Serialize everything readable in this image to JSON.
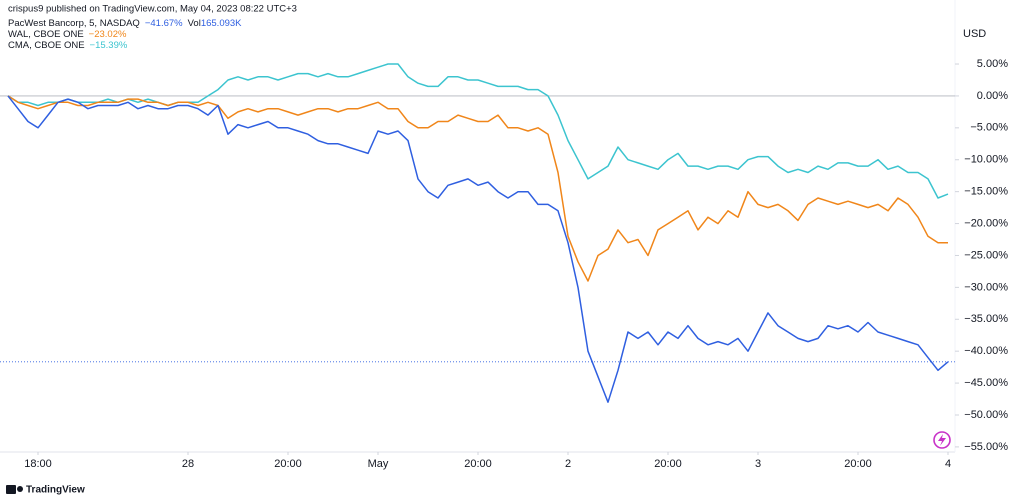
{
  "chart_data": {
    "type": "line",
    "title": "crispus9 published on TradingView.com, May 04, 2023 08:22 UTC+3",
    "y_axis_label": "USD",
    "footer": "TradingView",
    "volume": {
      "label": "Vol",
      "text": "165.093K"
    },
    "categories": [
      null,
      null,
      null,
      "18:00",
      null,
      null,
      null,
      null,
      null,
      null,
      null,
      null,
      null,
      null,
      null,
      null,
      null,
      null,
      "28",
      null,
      null,
      null,
      null,
      null,
      null,
      null,
      null,
      null,
      "20:00",
      null,
      null,
      null,
      null,
      null,
      null,
      null,
      null,
      "May",
      null,
      null,
      null,
      null,
      null,
      null,
      null,
      null,
      null,
      "20:00",
      null,
      null,
      null,
      null,
      null,
      null,
      null,
      null,
      "2",
      null,
      null,
      null,
      null,
      null,
      null,
      null,
      null,
      null,
      "20:00",
      null,
      null,
      null,
      null,
      null,
      null,
      null,
      null,
      "3",
      null,
      null,
      null,
      null,
      null,
      null,
      null,
      null,
      null,
      "20:00",
      null,
      null,
      null,
      null,
      null,
      null,
      null,
      null,
      "4"
    ],
    "series": [
      {
        "name": "PacWest Bancorp, 5, NASDAQ",
        "color": "#2f5fe0",
        "change": {
          "value": -41.67,
          "label": "−41.67%"
        },
        "values": [
          0,
          -2,
          -4,
          -5,
          -3,
          -1,
          -0.5,
          -1,
          -2,
          -1.5,
          -1.5,
          -1.5,
          -1,
          -2,
          -1.5,
          -2,
          -2,
          -1.5,
          -1.5,
          -2,
          -3,
          -1.5,
          -6,
          -4.5,
          -5,
          -4.5,
          -4,
          -5,
          -5,
          -5.5,
          -6,
          -7,
          -7.5,
          -7.5,
          -8,
          -8.5,
          -9,
          -5.5,
          -6,
          -5.5,
          -7,
          -13,
          -15,
          -16,
          -14,
          -13.5,
          -13,
          -14,
          -13.5,
          -15,
          -16,
          -15,
          -15,
          -17,
          -17,
          -18,
          -23,
          -30,
          -40,
          -44,
          -48,
          -43,
          -37,
          -38,
          -37,
          -39,
          -37,
          -38,
          -36,
          -38,
          -39,
          -38.5,
          -39,
          -38,
          -40,
          -37,
          -34,
          -36,
          -37,
          -38,
          -38.5,
          -38,
          -36,
          -36.5,
          -36,
          -37,
          -35.5,
          -37,
          -37.5,
          -38,
          -38.5,
          -39,
          -41,
          -43,
          -41.67
        ]
      },
      {
        "name": "WAL, CBOE ONE",
        "color": "#f0861a",
        "change": {
          "value": -23.02,
          "label": "−23.02%"
        },
        "values": [
          0,
          -1,
          -1.5,
          -2,
          -1.5,
          -1,
          -1,
          -1.5,
          -1.5,
          -1,
          -1,
          -1,
          -0.5,
          -0.5,
          -1,
          -1,
          -1.5,
          -1,
          -1,
          -1.5,
          -1,
          -1.5,
          -3.5,
          -2.5,
          -2,
          -2.5,
          -2,
          -2,
          -2.5,
          -3,
          -2.5,
          -2,
          -2,
          -2.5,
          -2,
          -2,
          -1.5,
          -1,
          -2,
          -2,
          -4,
          -5,
          -5,
          -4,
          -4,
          -3,
          -3.5,
          -4,
          -4,
          -3,
          -5,
          -5,
          -5.5,
          -5,
          -6,
          -12,
          -22,
          -26,
          -29,
          -25,
          -24,
          -21,
          -23,
          -22.5,
          -25,
          -21,
          -20,
          -19,
          -18,
          -21,
          -19,
          -20,
          -18,
          -19,
          -15,
          -17,
          -17.5,
          -17,
          -18,
          -19.5,
          -17,
          -16,
          -16.5,
          -17,
          -16.5,
          -17,
          -17.5,
          -17,
          -18,
          -16,
          -17,
          -19,
          -22,
          -23,
          -23.02
        ]
      },
      {
        "name": "CMA, CBOE ONE",
        "color": "#3cc4cf",
        "change": {
          "value": -15.39,
          "label": "−15.39%"
        },
        "values": [
          0,
          -1,
          -1,
          -1.5,
          -1,
          -1,
          -0.5,
          -1,
          -1,
          -1,
          -0.5,
          -1,
          -0.5,
          -1,
          -0.5,
          -1,
          -1.5,
          -1,
          -1,
          -1,
          0,
          1,
          2.5,
          3,
          2.5,
          3,
          3,
          2.5,
          3,
          3.5,
          3.5,
          3,
          3.5,
          3,
          3,
          3.5,
          4,
          4.5,
          5,
          5,
          3,
          2,
          1.5,
          1.5,
          3,
          3,
          2.5,
          2.5,
          2,
          1.5,
          1.5,
          1.5,
          1,
          1,
          0,
          -3,
          -7,
          -10,
          -13,
          -12,
          -11,
          -8,
          -10,
          -10.5,
          -11,
          -11.5,
          -10,
          -9,
          -11,
          -11,
          -11.5,
          -11,
          -11,
          -11.5,
          -10,
          -9.5,
          -9.5,
          -11,
          -12,
          -11.5,
          -12,
          -11,
          -11.5,
          -10.5,
          -10.5,
          -11,
          -11,
          -10,
          -11.5,
          -11,
          -12,
          -12,
          -13,
          -16,
          -15.39
        ]
      }
    ],
    "ylim": [
      -55.8,
      11.9
    ],
    "yticks": [
      {
        "value": 5,
        "label": "5.00%"
      },
      {
        "value": 0,
        "label": "0.00%"
      },
      {
        "value": -5,
        "label": "−5.00%"
      },
      {
        "value": -10,
        "label": "−10.00%"
      },
      {
        "value": -15,
        "label": "−15.00%"
      },
      {
        "value": -20,
        "label": "−20.00%"
      },
      {
        "value": -25,
        "label": "−25.00%"
      },
      {
        "value": -30,
        "label": "−30.00%"
      },
      {
        "value": -35,
        "label": "−35.00%"
      },
      {
        "value": -40,
        "label": "−40.00%"
      },
      {
        "value": -45,
        "label": "−45.00%"
      },
      {
        "value": -50,
        "label": "−50.00%"
      },
      {
        "value": -55,
        "label": "−55.00%"
      }
    ],
    "grid": false
  }
}
